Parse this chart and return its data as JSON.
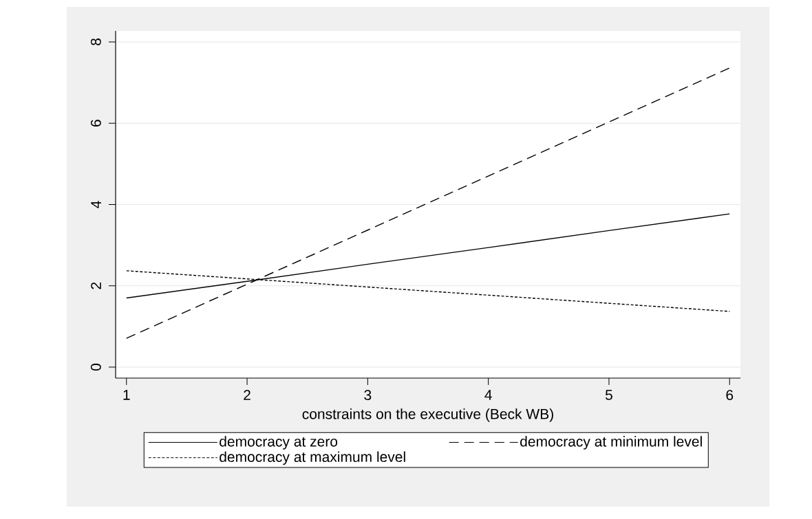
{
  "chart_data": {
    "type": "line",
    "xlabel": "constraints on the executive (Beck WB)",
    "x": [
      1,
      2,
      3,
      4,
      5,
      6
    ],
    "series": [
      {
        "name": "democracy at zero",
        "color": "#000000",
        "line_style": "solid",
        "values": [
          1.7,
          2.11,
          2.53,
          2.94,
          3.36,
          3.77
        ]
      },
      {
        "name": "democracy at minimum level",
        "color": "#000000",
        "line_style": "dashed",
        "values": [
          0.71,
          2.04,
          3.37,
          4.7,
          6.03,
          7.36
        ]
      },
      {
        "name": "democracy at maximum level",
        "color": "#000000",
        "line_style": "dotted",
        "values": [
          2.37,
          2.17,
          1.97,
          1.77,
          1.57,
          1.37
        ]
      }
    ],
    "xlim": [
      0.91,
      6.09
    ],
    "ylim": [
      -0.27,
      8.27
    ],
    "xticks": [
      1,
      2,
      3,
      4,
      5,
      6
    ],
    "yticks": [
      0,
      2,
      4,
      6,
      8
    ],
    "grid": "y",
    "legend": "bottom",
    "marker": "none"
  }
}
